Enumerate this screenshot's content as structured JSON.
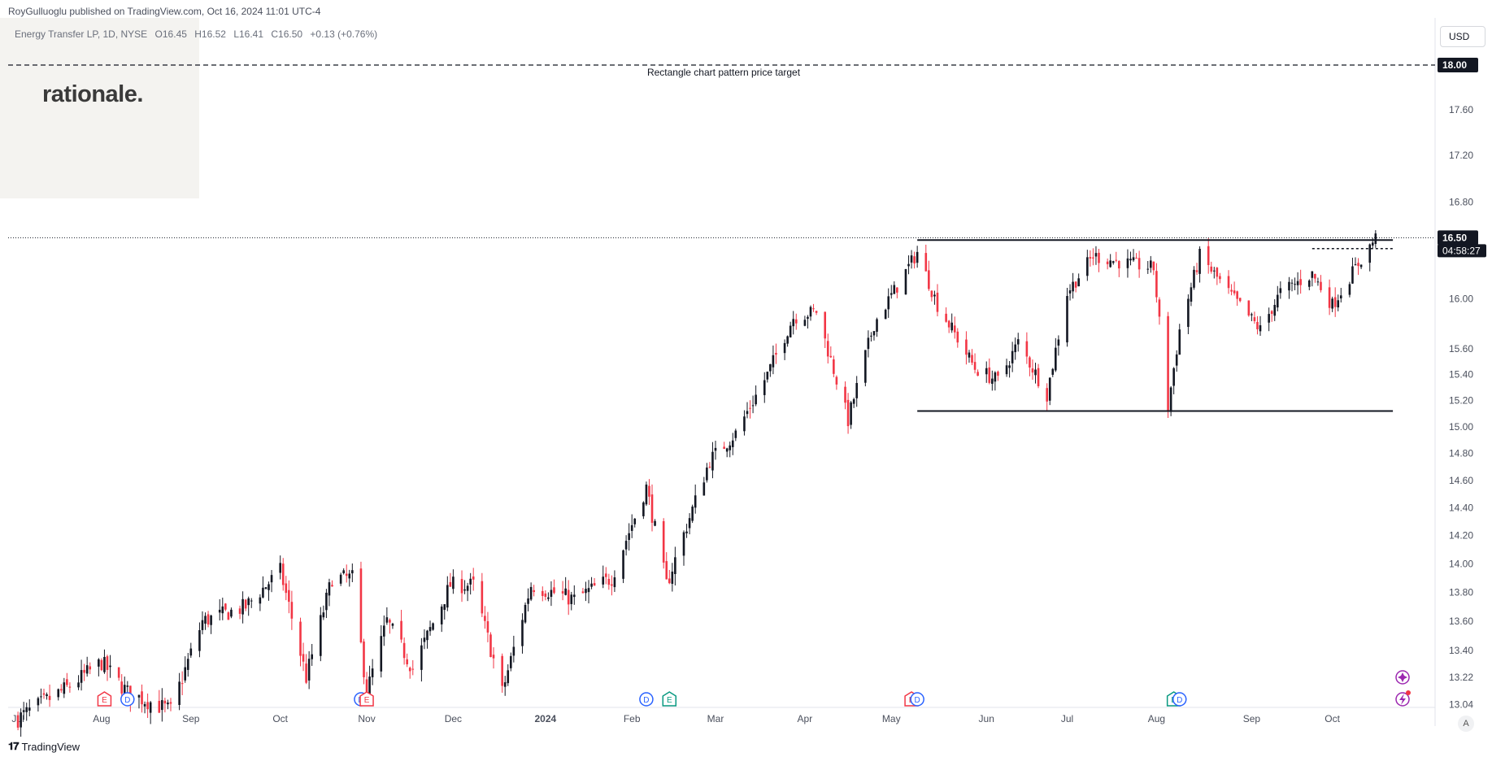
{
  "publisher_line": "RoyGulluoglu published on TradingView.com, Oct 16, 2024 11:01 UTC-4",
  "logo_text": "rationale.",
  "symbol": {
    "name": "Energy Transfer LP, 1D, NYSE",
    "open": "O16.45",
    "high": "H16.52",
    "low": "L16.41",
    "close": "C16.50",
    "change": "+0.13 (+0.76%)"
  },
  "currency": "USD",
  "footer": {
    "brand": "TradingView",
    "auto_label": "A"
  },
  "colors": {
    "up": "#131722",
    "down": "#f23645",
    "grid_line": "#131722",
    "event_earnings": "#f23645",
    "event_dividend": "#2962ff",
    "event_esg": "#089981",
    "alert": "#9c27b0"
  },
  "chart_data": {
    "type": "candlestick",
    "title": "",
    "ylabel": "",
    "xlabel": "",
    "ylim": [
      12.9,
      18.3
    ],
    "price_scale": "log",
    "y_ticks": [
      "13.04",
      "13.22",
      "13.40",
      "13.60",
      "13.80",
      "14.00",
      "14.20",
      "14.40",
      "14.60",
      "14.80",
      "15.00",
      "15.20",
      "15.40",
      "15.60",
      "16.00",
      "16.80",
      "17.20",
      "17.60",
      "18.00"
    ],
    "x_ticks": [
      "Jul",
      "Aug",
      "Sep",
      "Oct",
      "Nov",
      "Dec",
      "2024",
      "Feb",
      "Mar",
      "Apr",
      "May",
      "Jun",
      "Jul",
      "Aug",
      "Sep",
      "Oct"
    ],
    "x_range": [
      "2023-07-01",
      "2024-10-31"
    ],
    "close_path": [
      [
        "2023-07-03",
        12.95
      ],
      [
        "2023-07-20",
        13.15
      ],
      [
        "2023-08-01",
        13.32
      ],
      [
        "2023-08-10",
        13.12
      ],
      [
        "2023-08-25",
        13.0
      ],
      [
        "2023-09-05",
        13.6
      ],
      [
        "2023-09-20",
        13.7
      ],
      [
        "2023-10-02",
        13.95
      ],
      [
        "2023-10-11",
        13.22
      ],
      [
        "2023-10-20",
        13.9
      ],
      [
        "2023-10-27",
        13.9
      ],
      [
        "2023-11-01",
        13.12
      ],
      [
        "2023-11-08",
        13.6
      ],
      [
        "2023-11-17",
        13.28
      ],
      [
        "2023-11-30",
        13.85
      ],
      [
        "2023-12-08",
        13.85
      ],
      [
        "2023-12-18",
        13.12
      ],
      [
        "2023-12-28",
        13.85
      ],
      [
        "2024-01-12",
        13.75
      ],
      [
        "2024-01-25",
        13.9
      ],
      [
        "2024-02-06",
        14.55
      ],
      [
        "2024-02-13",
        13.85
      ],
      [
        "2024-02-28",
        14.75
      ],
      [
        "2024-03-08",
        14.95
      ],
      [
        "2024-03-19",
        15.4
      ],
      [
        "2024-03-28",
        15.85
      ],
      [
        "2024-04-05",
        15.9
      ],
      [
        "2024-04-16",
        15.05
      ],
      [
        "2024-04-25",
        15.8
      ],
      [
        "2024-05-03",
        16.1
      ],
      [
        "2024-05-10",
        16.38
      ],
      [
        "2024-05-17",
        15.95
      ],
      [
        "2024-05-30",
        15.45
      ],
      [
        "2024-06-07",
        15.35
      ],
      [
        "2024-06-14",
        15.65
      ],
      [
        "2024-06-24",
        15.25
      ],
      [
        "2024-07-01",
        16.05
      ],
      [
        "2024-07-10",
        16.35
      ],
      [
        "2024-07-19",
        16.3
      ],
      [
        "2024-07-31",
        16.25
      ],
      [
        "2024-08-05",
        15.15
      ],
      [
        "2024-08-09",
        15.75
      ],
      [
        "2024-08-16",
        16.35
      ],
      [
        "2024-08-26",
        16.05
      ],
      [
        "2024-09-06",
        15.75
      ],
      [
        "2024-09-13",
        16.05
      ],
      [
        "2024-09-24",
        16.2
      ],
      [
        "2024-10-01",
        15.95
      ],
      [
        "2024-10-09",
        16.25
      ],
      [
        "2024-10-16",
        16.5
      ]
    ],
    "drawings": [
      {
        "kind": "dashed-line",
        "price": 18.0,
        "label": "Rectangle chart pattern price target"
      },
      {
        "kind": "rectangle-top",
        "price": 16.48,
        "from": "2024-05-10",
        "to": "2024-10-22"
      },
      {
        "kind": "rectangle-bottom",
        "price": 15.12,
        "from": "2024-05-10",
        "to": "2024-10-22"
      },
      {
        "kind": "dotted-line",
        "price": 16.41,
        "from": "2024-09-24",
        "to": "2024-10-22"
      }
    ],
    "last_price": "16.50",
    "countdown": "04:58:27",
    "price_target_tag": "18.00",
    "events": [
      {
        "date": "2023-08-02",
        "type": "earnings",
        "label": "E"
      },
      {
        "date": "2023-08-10",
        "type": "dividend",
        "label": "D"
      },
      {
        "date": "2023-10-30",
        "type": "dividend",
        "label": "D"
      },
      {
        "date": "2023-11-01",
        "type": "earnings",
        "label": "E"
      },
      {
        "date": "2024-02-06",
        "type": "dividend",
        "label": "D"
      },
      {
        "date": "2024-02-14",
        "type": "esg",
        "label": "E"
      },
      {
        "date": "2024-05-08",
        "type": "earnings",
        "label": "E"
      },
      {
        "date": "2024-05-10",
        "type": "dividend",
        "label": "D"
      },
      {
        "date": "2024-08-07",
        "type": "esg",
        "label": "E"
      },
      {
        "date": "2024-08-09",
        "type": "dividend",
        "label": "D"
      }
    ]
  }
}
